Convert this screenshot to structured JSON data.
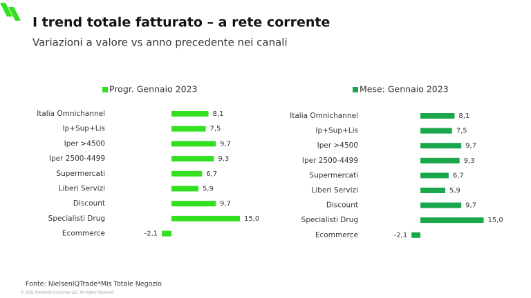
{
  "slide": {
    "title": "I trend totale fatturato – a rete corrente",
    "subtitle": "Variazioni a valore vs anno precedente nei canali",
    "source": "Fonte: NielsenIQTrade*Mis Totale Negozio",
    "copyright": "© 2021 NielsenIQ Consumer LLC. All Rights Reserved."
  },
  "chart_data": [
    {
      "type": "hbar",
      "categories": [
        "Italia Omnichannel",
        "Ip+Sup+Lis",
        "Iper >4500",
        "Iper 2500-4499",
        "Supermercati",
        "Liberi Servizi",
        "Discount",
        "Specialisti Drug",
        "Ecommerce"
      ],
      "series": [
        {
          "name": "Progr. Gennaio 2023",
          "color": "#33e01f",
          "values": [
            8.1,
            7.5,
            9.7,
            9.3,
            6.7,
            5.9,
            9.7,
            15.0,
            -2.1
          ],
          "value_labels": [
            "8,1",
            "7,5",
            "9,7",
            "9,3",
            "6,7",
            "5,9",
            "9,7",
            "15,0",
            "-2,1"
          ]
        }
      ]
    },
    {
      "type": "hbar",
      "categories": [
        "Italia Omnichannel",
        "Ip+Sup+Lis",
        "Iper >4500",
        "Iper 2500-4499",
        "Supermercati",
        "Liberi Servizi",
        "Discount",
        "Specialisti Drug",
        "Ecommerce"
      ],
      "series": [
        {
          "name": "Mese: Gennaio 2023",
          "color": "#1aa64a",
          "values": [
            8.1,
            7.5,
            9.7,
            9.3,
            6.7,
            5.9,
            9.7,
            15.0,
            -2.1
          ],
          "value_labels": [
            "8,1",
            "7,5",
            "9,7",
            "9,3",
            "6,7",
            "5,9",
            "9,7",
            "15,0",
            "-2,1"
          ]
        }
      ]
    }
  ]
}
